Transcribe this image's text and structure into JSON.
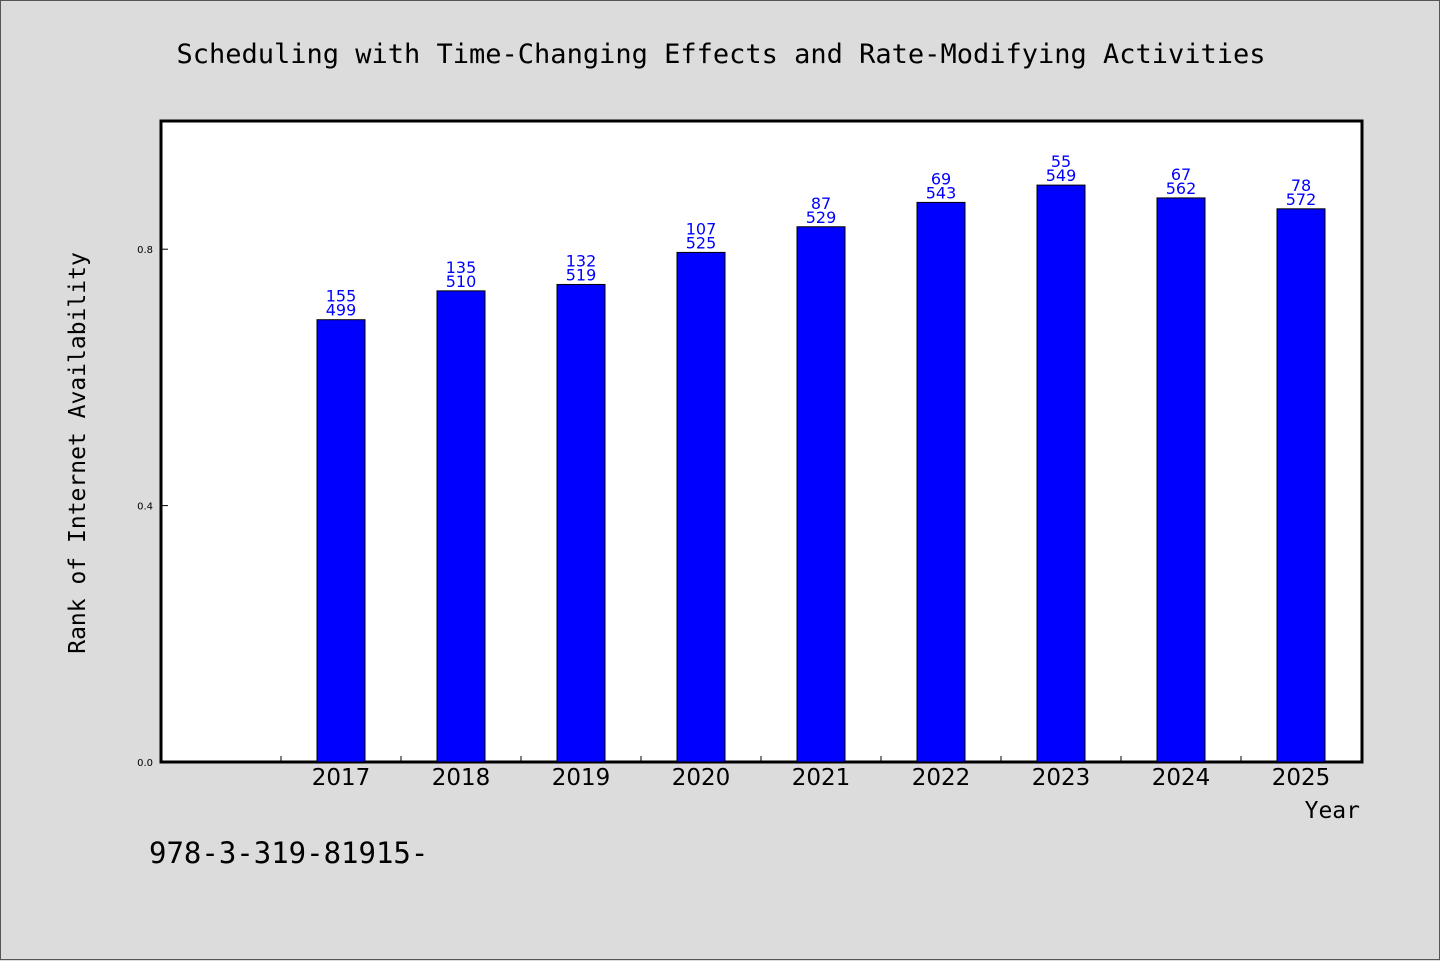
{
  "chart_data": {
    "type": "bar",
    "title": "Scheduling with Time-Changing Effects and Rate-Modifying Activities",
    "xlabel": "Year",
    "ylabel": "Rank of Internet Availability",
    "categories": [
      "2017",
      "2018",
      "2019",
      "2020",
      "2021",
      "2022",
      "2023",
      "2024",
      "2025"
    ],
    "values": [
      0.69,
      0.735,
      0.745,
      0.795,
      0.835,
      0.873,
      0.9,
      0.88,
      0.863
    ],
    "bar_labels_top": [
      "155",
      "135",
      "132",
      "107",
      "87",
      "69",
      "55",
      "67",
      "78"
    ],
    "bar_labels_bottom": [
      "499",
      "510",
      "519",
      "525",
      "529",
      "543",
      "549",
      "562",
      "572"
    ],
    "ylim": [
      0,
      1.0
    ],
    "yticks": [
      "0.0",
      "0.4",
      "0.8"
    ],
    "ytick_values": [
      0.0,
      0.4,
      0.8
    ],
    "grid": false,
    "bar_color": "#0000ff",
    "label_color": "#0000ff"
  },
  "footer": {
    "isbn_text": "978-3-319-81915-"
  }
}
